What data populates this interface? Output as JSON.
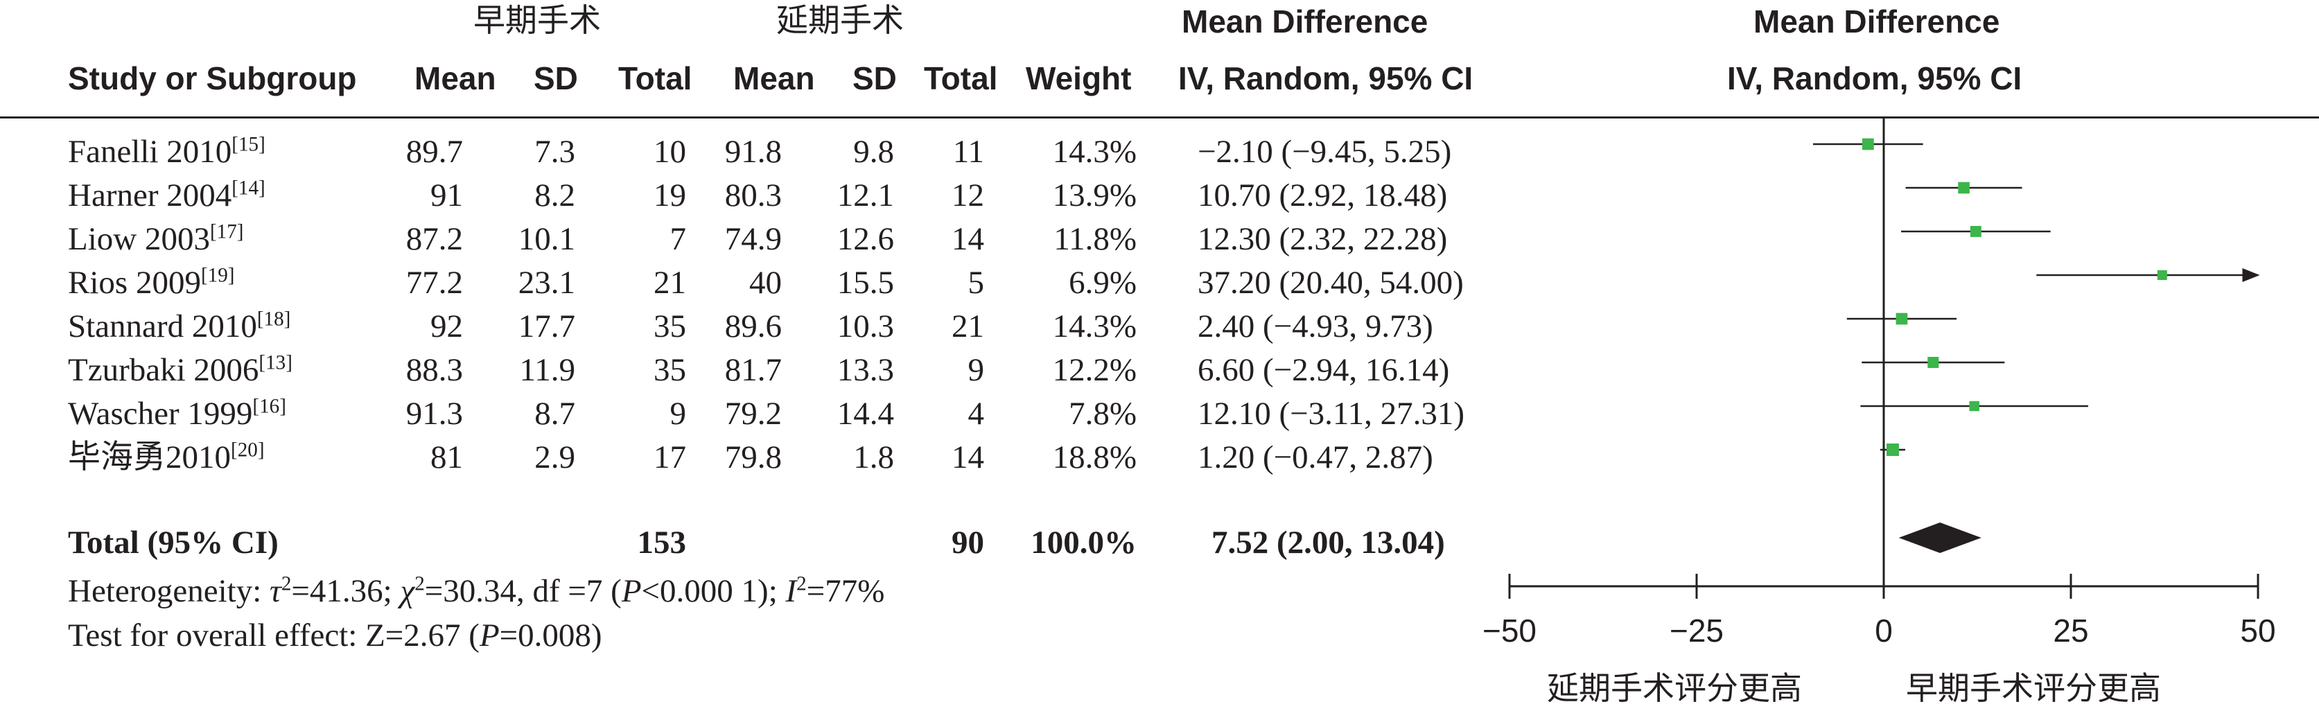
{
  "header": {
    "group_early": "早期手术",
    "group_delayed": "延期手术",
    "col_study": "Study or Subgroup",
    "col_mean": "Mean",
    "col_sd": "SD",
    "col_total": "Total",
    "col_weight": "Weight",
    "md_title": "Mean Difference",
    "md_method": "IV, Random, 95% CI",
    "plot_title": "Mean Difference",
    "plot_method": "IV, Random, 95% CI"
  },
  "studies": [
    {
      "name": "Fanelli 2010",
      "ref": "[15]",
      "e_mean": "89.7",
      "e_sd": "7.3",
      "e_total": "10",
      "d_mean": "91.8",
      "d_sd": "9.8",
      "d_total": "11",
      "weight": "14.3%",
      "ci_text": "−2.10 (−9.45, 5.25)"
    },
    {
      "name": "Harner 2004",
      "ref": "[14]",
      "e_mean": "91",
      "e_sd": "8.2",
      "e_total": "19",
      "d_mean": "80.3",
      "d_sd": "12.1",
      "d_total": "12",
      "weight": "13.9%",
      "ci_text": "10.70 (2.92, 18.48)"
    },
    {
      "name": "Liow 2003",
      "ref": "[17]",
      "e_mean": "87.2",
      "e_sd": "10.1",
      "e_total": "7",
      "d_mean": "74.9",
      "d_sd": "12.6",
      "d_total": "14",
      "weight": "11.8%",
      "ci_text": "12.30 (2.32, 22.28)"
    },
    {
      "name": "Rios 2009",
      "ref": "[19]",
      "e_mean": "77.2",
      "e_sd": "23.1",
      "e_total": "21",
      "d_mean": "40",
      "d_sd": "15.5",
      "d_total": "5",
      "weight": "6.9%",
      "ci_text": "37.20 (20.40, 54.00)"
    },
    {
      "name": "Stannard 2010",
      "ref": "[18]",
      "e_mean": "92",
      "e_sd": "17.7",
      "e_total": "35",
      "d_mean": "89.6",
      "d_sd": "10.3",
      "d_total": "21",
      "weight": "14.3%",
      "ci_text": "2.40 (−4.93, 9.73)"
    },
    {
      "name": "Tzurbaki 2006",
      "ref": "[13]",
      "e_mean": "88.3",
      "e_sd": "11.9",
      "e_total": "35",
      "d_mean": "81.7",
      "d_sd": "13.3",
      "d_total": "9",
      "weight": "12.2%",
      "ci_text": "6.60 (−2.94, 16.14)"
    },
    {
      "name": "Wascher 1999",
      "ref": "[16]",
      "e_mean": "91.3",
      "e_sd": "8.7",
      "e_total": "9",
      "d_mean": "79.2",
      "d_sd": "14.4",
      "d_total": "4",
      "weight": "7.8%",
      "ci_text": "12.10 (−3.11, 27.31)"
    },
    {
      "name": "毕海勇2010",
      "ref": "[20]",
      "e_mean": "81",
      "e_sd": "2.9",
      "e_total": "17",
      "d_mean": "79.8",
      "d_sd": "1.8",
      "d_total": "14",
      "weight": "18.8%",
      "ci_text": "1.20 (−0.47, 2.87)"
    }
  ],
  "total": {
    "label": "Total (95% CI)",
    "e_total": "153",
    "d_total": "90",
    "weight": "100.0%",
    "ci_text": "7.52 (2.00, 13.04)"
  },
  "heterogeneity": {
    "prefix": "Heterogeneity: ",
    "tau_sym": "τ",
    "tau_val": "=41.36; ",
    "chi_sym": "χ",
    "chi_val": "=30.34, df =7 (",
    "p_sym": "P",
    "p_val": "<0.000 1); ",
    "i_sym": "I",
    "i_val": "=77%"
  },
  "overall": {
    "prefix": "Test for overall effect: Z=2.67 (",
    "p_sym": "P",
    "p_val": "=0.008)"
  },
  "axis": {
    "favours_left": "延期手术评分更高",
    "favours_right": "早期手术评分更高"
  },
  "colors": {
    "text": "#231f20",
    "marker": "#3cb54a",
    "diamond": "#231f20"
  },
  "chart_data": {
    "type": "forest",
    "xlim": [
      -50,
      50
    ],
    "ticks": [
      -50,
      -25,
      0,
      25,
      50
    ],
    "tick_labels": [
      "−50",
      "−25",
      "0",
      "25",
      "50"
    ],
    "xlabel_left": "延期手术评分更高",
    "xlabel_right": "早期手术评分更高",
    "series": [
      {
        "name": "Fanelli 2010",
        "md": -2.1,
        "lo": -9.45,
        "hi": 5.25,
        "weight": 14.3
      },
      {
        "name": "Harner 2004",
        "md": 10.7,
        "lo": 2.92,
        "hi": 18.48,
        "weight": 13.9
      },
      {
        "name": "Liow 2003",
        "md": 12.3,
        "lo": 2.32,
        "hi": 22.28,
        "weight": 11.8
      },
      {
        "name": "Rios 2009",
        "md": 37.2,
        "lo": 20.4,
        "hi": 54.0,
        "weight": 6.9
      },
      {
        "name": "Stannard 2010",
        "md": 2.4,
        "lo": -4.93,
        "hi": 9.73,
        "weight": 14.3
      },
      {
        "name": "Tzurbaki 2006",
        "md": 6.6,
        "lo": -2.94,
        "hi": 16.14,
        "weight": 12.2
      },
      {
        "name": "Wascher 1999",
        "md": 12.1,
        "lo": -3.11,
        "hi": 27.31,
        "weight": 7.8
      },
      {
        "name": "毕海勇2010",
        "md": 1.2,
        "lo": -0.47,
        "hi": 2.87,
        "weight": 18.8
      }
    ],
    "pooled": {
      "md": 7.52,
      "lo": 2.0,
      "hi": 13.04
    }
  }
}
